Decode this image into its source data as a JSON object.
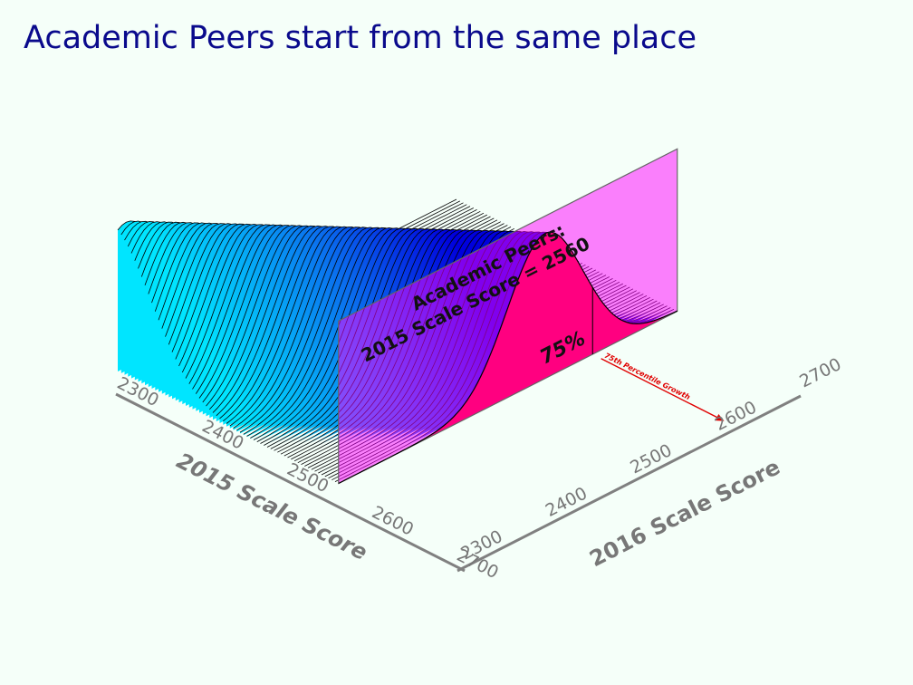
{
  "title": "Academic Peers start from the same place",
  "chart_data": {
    "type": "3d-conditional-density",
    "x_axis": {
      "label": "2015 Scale Score",
      "ticks": [
        2300,
        2400,
        2500,
        2600,
        2700
      ],
      "range": [
        2300,
        2700
      ]
    },
    "y_axis": {
      "label": "2016 Scale Score",
      "ticks": [
        2300,
        2400,
        2500,
        2600,
        2700
      ],
      "range": [
        2300,
        2700
      ]
    },
    "peer_plane": {
      "score_2015": 2560,
      "label_line1": "Academic Peers:",
      "label_line2": "2015 Scale Score = 2560"
    },
    "percentile": {
      "value": 75,
      "label": "75%",
      "score_2016": 2600,
      "arrow_label": "75th Percentile Growth"
    },
    "colors": {
      "surface_low": "#00e5ff",
      "surface_high": "#0000dd",
      "plane": "#ff00ff",
      "tail_fill": "#ff0000",
      "axis": "#808080"
    }
  }
}
